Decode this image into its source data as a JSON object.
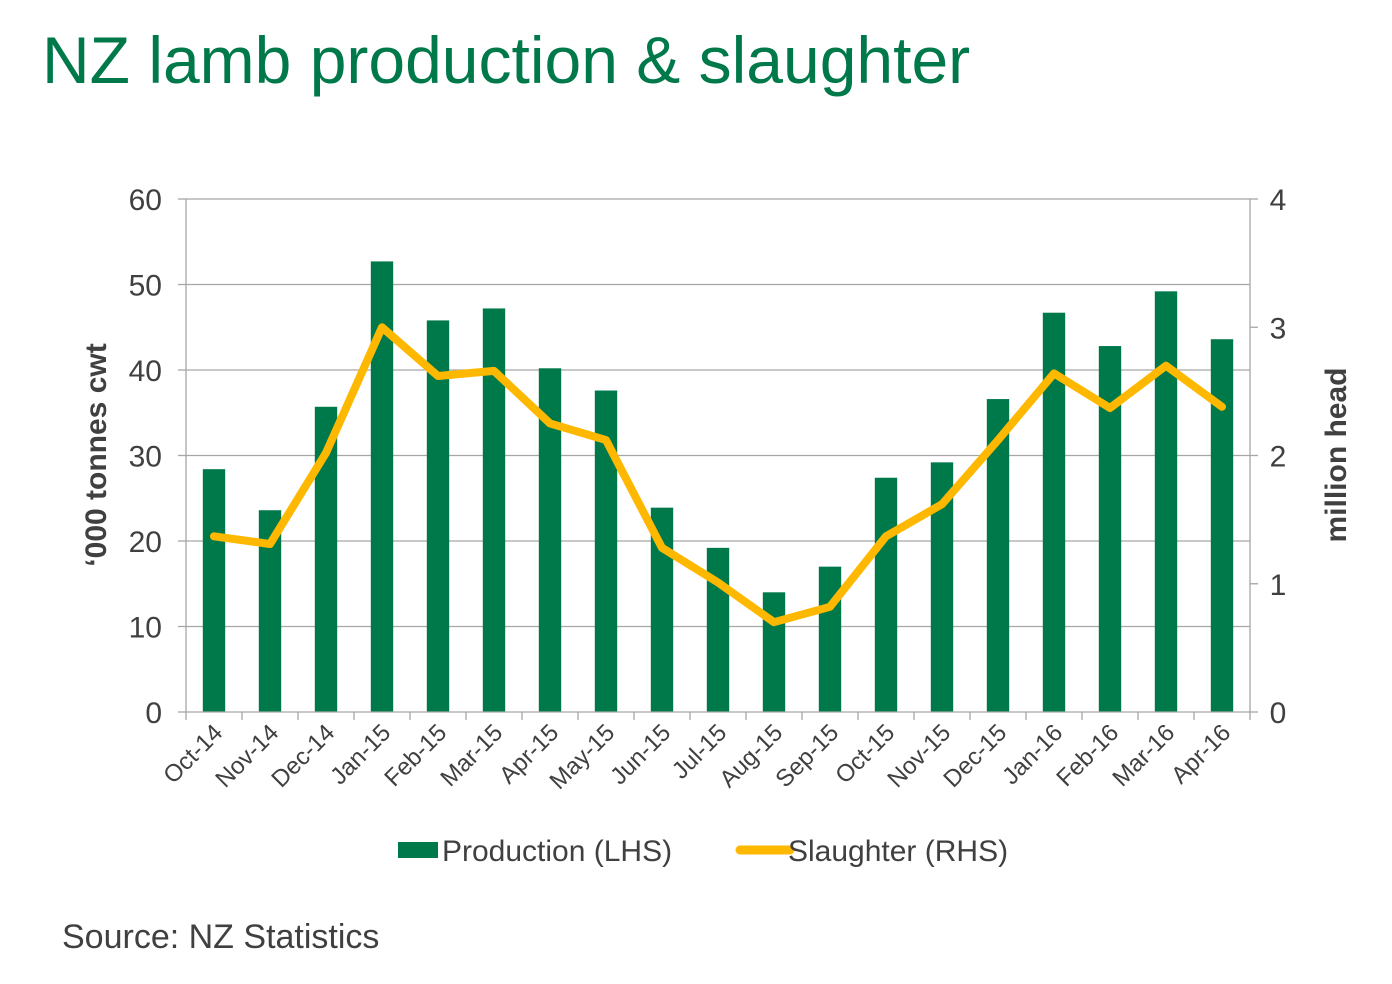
{
  "title": "NZ lamb production & slaughter",
  "source": "Source: NZ Statistics",
  "colors": {
    "title": "#00794A",
    "bars": "#00794A",
    "line": "#FFB800",
    "grid": "#A6A6A6",
    "text": "#404040"
  },
  "chart_data": {
    "type": "bar",
    "categories": [
      "Oct-14",
      "Nov-14",
      "Dec-14",
      "Jan-15",
      "Feb-15",
      "Mar-15",
      "Apr-15",
      "May-15",
      "Jun-15",
      "Jul-15",
      "Aug-15",
      "Sep-15",
      "Oct-15",
      "Nov-15",
      "Dec-15",
      "Jan-16",
      "Feb-16",
      "Mar-16",
      "Apr-16"
    ],
    "series": [
      {
        "name": "Production (LHS)",
        "type": "bar",
        "axis": "left",
        "values": [
          28.4,
          23.6,
          35.7,
          52.7,
          45.8,
          47.2,
          40.2,
          37.6,
          23.9,
          19.2,
          14.0,
          17.0,
          27.4,
          29.2,
          36.6,
          46.7,
          42.8,
          49.2,
          43.6
        ]
      },
      {
        "name": "Slaughter (RHS)",
        "type": "line",
        "axis": "right",
        "values": [
          1.37,
          1.31,
          2.02,
          3.0,
          2.62,
          2.66,
          2.25,
          2.12,
          1.28,
          1.01,
          0.7,
          0.82,
          1.37,
          1.62,
          2.12,
          2.64,
          2.37,
          2.7,
          2.38
        ]
      }
    ],
    "yaxis_left": {
      "label": "‘000 tonnes cwt",
      "min": 0,
      "max": 60,
      "ticks": [
        "0",
        "10",
        "20",
        "30",
        "40",
        "50",
        "60"
      ]
    },
    "yaxis_right": {
      "label": "million head",
      "min": 0,
      "max": 4,
      "ticks": [
        "0",
        "1",
        "2",
        "3",
        "4"
      ]
    },
    "grid": true,
    "legend_position": "bottom"
  }
}
